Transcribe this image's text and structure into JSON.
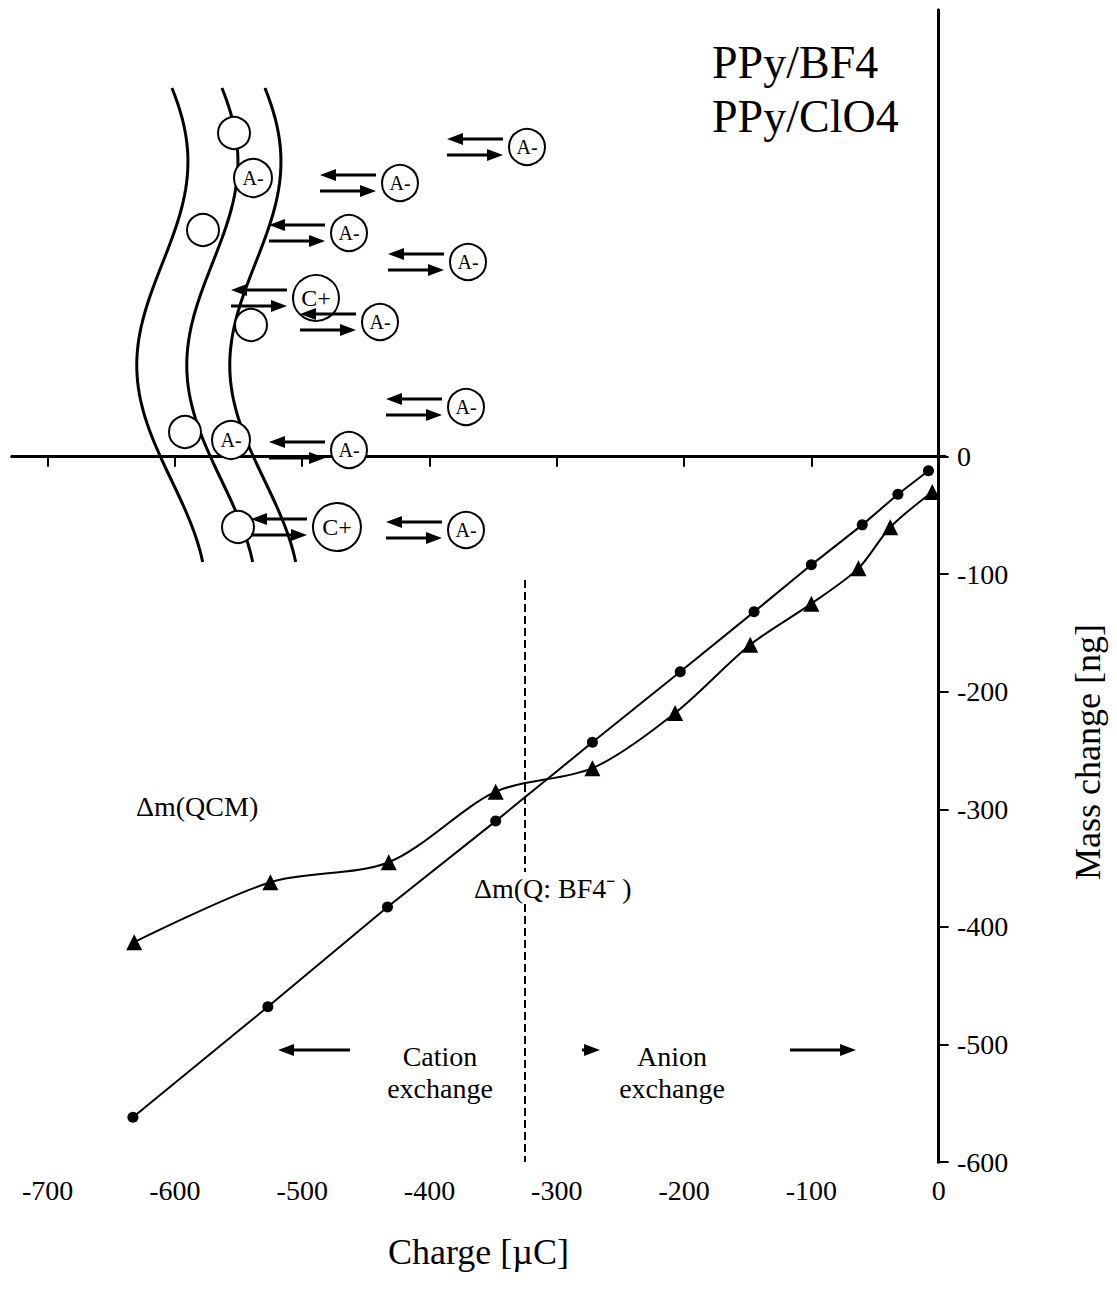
{
  "chart_data": {
    "type": "line",
    "title": [
      "PPy/BF4",
      "PPy/ClO4"
    ],
    "x_label": "Charge [µC]",
    "y_label": "Mass change [ng]",
    "xlim": [
      -728,
      5
    ],
    "xticks": [
      -700,
      -600,
      -500,
      -400,
      -300,
      -200,
      -100,
      0
    ],
    "ylim": [
      -600,
      380
    ],
    "yticks": [
      -600,
      -500,
      -400,
      -300,
      -200,
      -100,
      0
    ],
    "grid": false,
    "series": [
      {
        "name": "Δm(QCM)",
        "color": "#000000",
        "marker": "triangle",
        "line_style": "solid",
        "x": [
          -5,
          -38,
          -63,
          -100,
          -148,
          -207,
          -272,
          -348,
          -432,
          -525,
          -632
        ],
        "values": [
          -30,
          -60,
          -95,
          -125,
          -160,
          -218,
          -265,
          -285,
          -345,
          -362,
          -413
        ]
      },
      {
        "name": "Δm(Q: BF4⁻ )",
        "color": "#000000",
        "marker": "circle",
        "line_style": "solid",
        "x": [
          -8,
          -32,
          -60,
          -100,
          -145,
          -203,
          -272,
          -348,
          -433,
          -527,
          -633
        ],
        "values": [
          -12,
          -32,
          -58,
          -92,
          -132,
          -183,
          -243,
          -310,
          -383,
          -468,
          -562
        ]
      }
    ],
    "annotations": [
      "Cation exchange",
      "Anion exchange"
    ],
    "divider": {
      "x": -325,
      "y_top": -105,
      "line_style": "dashed"
    },
    "inset_labels": [
      "A-",
      "A-",
      "A-",
      "A-",
      "A-",
      "A-",
      "A-",
      "A-",
      "A-",
      "A-",
      "C+",
      "C+"
    ]
  }
}
